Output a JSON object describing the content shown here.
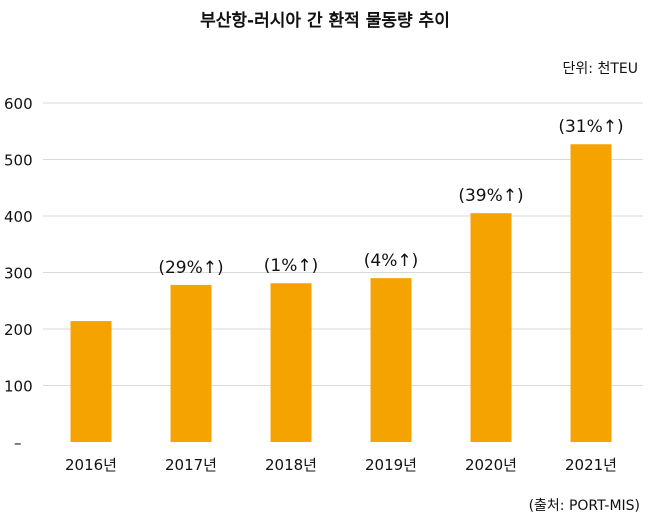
{
  "chart_data": {
    "type": "bar",
    "title": "부산항-러시아 간 환적 물동량 추이",
    "unit": "단위: 천TEU",
    "source": "(출처: PORT-MIS)",
    "categories": [
      "2016년",
      "2017년",
      "2018년",
      "2019년",
      "2020년",
      "2021년"
    ],
    "values": [
      214,
      278,
      281,
      290,
      405,
      527
    ],
    "data_labels": [
      "",
      "(29%↑)",
      "(1%↑)",
      "(4%↑)",
      "(39%↑)",
      "(31%↑)"
    ],
    "yticks": [
      "–",
      "100",
      "200",
      "300",
      "400",
      "500",
      "600"
    ],
    "ylim": [
      0,
      600
    ],
    "grid": true,
    "bar_color": "#F5A300"
  }
}
